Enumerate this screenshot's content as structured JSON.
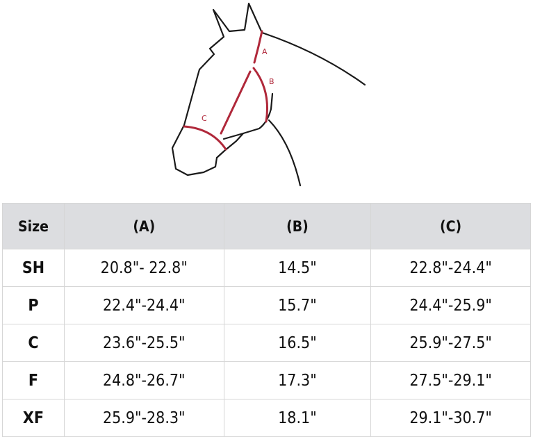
{
  "diagram": {
    "labels": [
      "A",
      "B",
      "C"
    ],
    "outline_color": "#1a1a1a",
    "measure_color": "#b0283a"
  },
  "table": {
    "headers": [
      "Size",
      "(A)",
      "(B)",
      "(C)"
    ],
    "rows": [
      [
        "SH",
        "20.8\"- 22.8\"",
        "14.5\"",
        "22.8\"-24.4\""
      ],
      [
        "P",
        "22.4\"-24.4\"",
        "15.7\"",
        "24.4\"-25.9\""
      ],
      [
        "C",
        "23.6\"-25.5\"",
        "16.5\"",
        "25.9\"-27.5\""
      ],
      [
        "F",
        "24.8\"-26.7\"",
        "17.3\"",
        "27.5\"-29.1\""
      ],
      [
        "XF",
        "25.9\"-28.3\"",
        "18.1\"",
        "29.1\"-30.7\""
      ]
    ]
  }
}
